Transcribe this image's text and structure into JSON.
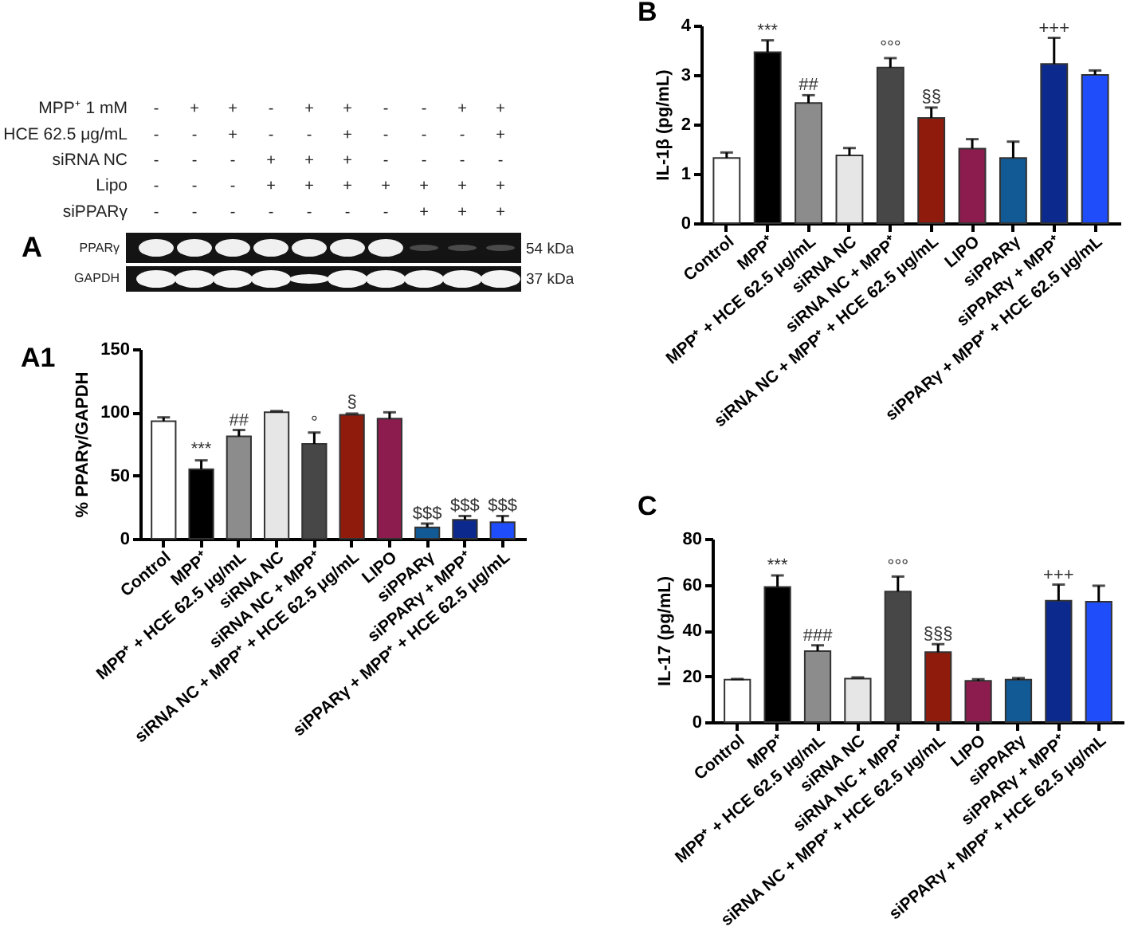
{
  "chart_data": [
    {
      "type": "other",
      "title": "A",
      "categories": [
        null,
        null,
        null,
        null,
        null,
        null,
        null,
        null,
        null,
        null
      ],
      "y_categories": [
        "MPP⁺ 1 mM",
        "HCE 62.5 μg/mL",
        "siRNA NC",
        "Lipo",
        "siPPARγ"
      ],
      "cell_labels": [
        [
          "-",
          "+",
          "+",
          "-",
          "+",
          "+",
          "-",
          "-",
          "+",
          "+"
        ],
        [
          "-",
          "-",
          "+",
          "-",
          "-",
          "+",
          "-",
          "-",
          "-",
          "+"
        ],
        [
          "-",
          "-",
          "-",
          "+",
          "+",
          "+",
          "-",
          "-",
          "-",
          "-"
        ],
        [
          "-",
          "-",
          "-",
          "+",
          "+",
          "+",
          "+",
          "+",
          "+",
          "+"
        ],
        [
          "-",
          "-",
          "-",
          "-",
          "-",
          "-",
          "-",
          "+",
          "+",
          "+"
        ]
      ],
      "annotations": [
        "PPARγ",
        "54 kDa",
        "GAPDH",
        "37 kDa"
      ]
    },
    {
      "type": "bar",
      "title": "A1",
      "ylabel": "% PPARγ/GAPDH",
      "categories": [
        "Control",
        "MPP⁺",
        "MPP⁺ + HCE 62.5 μg/mL",
        "siRNA NC",
        "siRNA NC + MPP⁺",
        "siRNA NC + MPP⁺ + HCE 62.5 μg/mL",
        "LIPO",
        "siPPARγ",
        "siPPARγ + MPP⁺",
        "siPPARγ + MPP⁺ + HCE 62.5 μg/mL"
      ],
      "values": [
        93,
        55,
        81,
        100,
        75,
        98,
        95,
        9,
        15,
        13
      ],
      "errors": [
        3,
        7,
        5,
        1,
        9,
        1,
        5,
        3,
        3,
        5
      ],
      "colors": [
        "#ffffff",
        "#000000",
        "#8c8c8c",
        "#e6e6e6",
        "#474747",
        "#8e1b0c",
        "#8c1c4e",
        "#115a96",
        "#0c2a8e",
        "#1f4dfa"
      ],
      "ylim": [
        0,
        150
      ],
      "yticks": [
        0,
        50,
        100,
        150
      ],
      "annotations": [
        {
          "text": "***",
          "x": "MPP⁺",
          "y": 63
        },
        {
          "text": "##",
          "x": "MPP⁺ + HCE 62.5 μg/mL",
          "y": 86
        },
        {
          "text": "°",
          "x": "siRNA NC + MPP⁺",
          "y": 84
        },
        {
          "text": "§",
          "x": "siRNA NC + MPP⁺ + HCE 62.5 μg/mL",
          "y": 100
        },
        {
          "text": "$$$",
          "x": "siPPARγ",
          "y": 12
        },
        {
          "text": "$$$",
          "x": "siPPARγ + MPP⁺",
          "y": 18
        },
        {
          "text": "$$$",
          "x": "siPPARγ + MPP⁺ + HCE 62.5 μg/mL",
          "y": 18
        }
      ]
    },
    {
      "type": "bar",
      "title": "B",
      "ylabel": "IL-1β (pg/mL)",
      "categories": [
        "Control",
        "MPP⁺",
        "MPP⁺ + HCE 62.5 μg/mL",
        "siRNA NC",
        "siRNA NC + MPP⁺",
        "siRNA NC + MPP⁺ + HCE 62.5 μg/mL",
        "LIPO",
        "siPPARγ",
        "siPPARγ + MPP⁺",
        "siPPARγ + MPP⁺ + HCE 62.5 μg/mL"
      ],
      "values": [
        1.32,
        3.46,
        2.43,
        1.37,
        3.15,
        2.13,
        1.51,
        1.32,
        3.22,
        3.0
      ],
      "errors": [
        0.11,
        0.24,
        0.16,
        0.15,
        0.19,
        0.21,
        0.19,
        0.33,
        0.53,
        0.09
      ],
      "colors": [
        "#ffffff",
        "#000000",
        "#8c8c8c",
        "#e6e6e6",
        "#474747",
        "#8e1b0c",
        "#8c1c4e",
        "#115a96",
        "#0c2a8e",
        "#1f4dfa"
      ],
      "ylim": [
        0,
        4
      ],
      "yticks": [
        0,
        1,
        2,
        3,
        4
      ],
      "annotations": [
        {
          "text": "***",
          "x": "MPP⁺",
          "y": 3.7
        },
        {
          "text": "##",
          "x": "MPP⁺ + HCE 62.5 μg/mL",
          "y": 2.6
        },
        {
          "text": "°°°",
          "x": "siRNA NC + MPP⁺",
          "y": 3.35
        },
        {
          "text": "§§",
          "x": "siRNA NC + MPP⁺ + HCE 62.5 μg/mL",
          "y": 2.35
        },
        {
          "text": "+++",
          "x": "siPPARγ + MPP⁺",
          "y": 3.75
        }
      ]
    },
    {
      "type": "bar",
      "title": "C",
      "ylabel": "IL-17 (pg/mL)",
      "categories": [
        "Control",
        "MPP⁺",
        "MPP⁺ + HCE 62.5 μg/mL",
        "siRNA NC",
        "siRNA NC + MPP⁺",
        "siRNA NC + MPP⁺ + HCE 62.5 μg/mL",
        "LIPO",
        "siPPARγ",
        "siPPARγ + MPP⁺",
        "siPPARγ + MPP⁺ + HCE 62.5 μg/mL"
      ],
      "values": [
        18.5,
        59,
        31,
        19,
        57,
        30.5,
        18,
        18.5,
        53,
        52.5
      ],
      "errors": [
        0.3,
        5,
        2.5,
        0.5,
        6.5,
        3.5,
        0.7,
        0.7,
        7,
        7
      ],
      "colors": [
        "#ffffff",
        "#000000",
        "#8c8c8c",
        "#e6e6e6",
        "#474747",
        "#8e1b0c",
        "#8c1c4e",
        "#115a96",
        "#0c2a8e",
        "#1f4dfa"
      ],
      "ylim": [
        0,
        80
      ],
      "yticks": [
        0,
        20,
        40,
        60,
        80
      ],
      "annotations": [
        {
          "text": "***",
          "x": "MPP⁺",
          "y": 64
        },
        {
          "text": "###",
          "x": "MPP⁺ + HCE 62.5 μg/mL",
          "y": 33.5
        },
        {
          "text": "°°°",
          "x": "siRNA NC + MPP⁺",
          "y": 63.5
        },
        {
          "text": "§§§",
          "x": "siRNA NC + MPP⁺ + HCE 62.5 μg/mL",
          "y": 34
        },
        {
          "text": "+++",
          "x": "siPPARγ + MPP⁺",
          "y": 60
        }
      ]
    }
  ]
}
